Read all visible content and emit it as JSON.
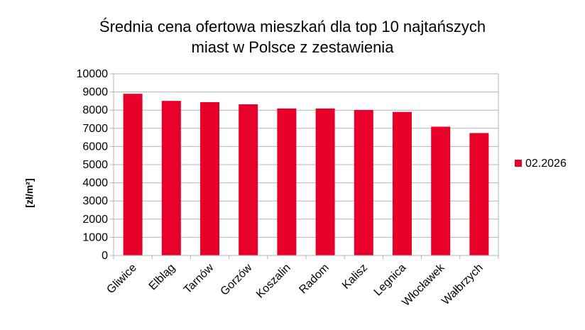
{
  "chart_data": {
    "type": "bar",
    "title": [
      "Średnia cena ofertowa mieszkań dla top 10 najtańszych",
      "miast w Polsce z zestawienia"
    ],
    "xlabel": "",
    "ylabel": "[zł/m²]",
    "ylim": [
      0,
      10000
    ],
    "yticks": [
      0,
      1000,
      2000,
      3000,
      4000,
      5000,
      6000,
      7000,
      8000,
      9000,
      10000
    ],
    "grid": true,
    "legend_position": "right",
    "categories": [
      "Gliwice",
      "Elbląg",
      "Tarnów",
      "Gorzów",
      "Koszalin",
      "Radom",
      "Kalisz",
      "Legnica",
      "Włocławek",
      "Wałbrzych"
    ],
    "series": [
      {
        "name": "02.2026",
        "color": "#e8002a",
        "values": [
          8900,
          8510,
          8440,
          8320,
          8090,
          8090,
          8010,
          7900,
          7090,
          6740
        ]
      }
    ]
  }
}
